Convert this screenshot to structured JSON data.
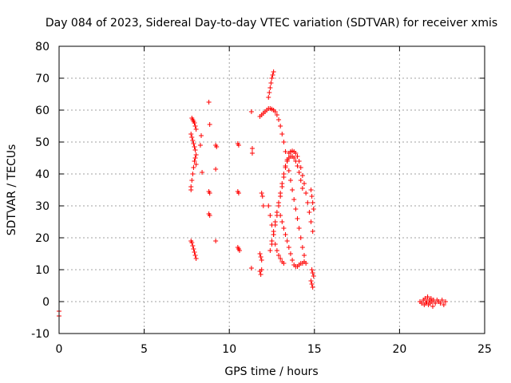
{
  "chart_data": {
    "type": "scatter",
    "title": "Day 084 of 2023, Sidereal Day-to-day VTEC variation (SDTVAR) for receiver xmis",
    "xlabel": "GPS time / hours",
    "ylabel": "SDTVAR / TECUs",
    "xlim": [
      0,
      25
    ],
    "ylim": [
      -10,
      80
    ],
    "xticks": [
      0,
      5,
      10,
      15,
      20,
      25
    ],
    "yticks": [
      -10,
      0,
      10,
      20,
      30,
      40,
      50,
      60,
      70,
      80
    ],
    "grid": true,
    "marker": "+",
    "color": "#ff0000",
    "series": [
      {
        "points": [
          [
            0.0,
            -3.0
          ],
          [
            0.0,
            -4.5
          ],
          [
            7.8,
            57.5
          ],
          [
            7.85,
            57.0
          ],
          [
            7.9,
            56.5
          ],
          [
            7.95,
            56.0
          ],
          [
            8.0,
            55.0
          ],
          [
            8.05,
            54.0
          ],
          [
            7.75,
            52.5
          ],
          [
            7.8,
            51.5
          ],
          [
            7.85,
            50.5
          ],
          [
            7.9,
            49.5
          ],
          [
            7.95,
            48.5
          ],
          [
            8.0,
            47.5
          ],
          [
            8.05,
            46.0
          ],
          [
            7.95,
            44.0
          ],
          [
            7.9,
            42.0
          ],
          [
            7.85,
            40.0
          ],
          [
            7.8,
            38.0
          ],
          [
            7.75,
            36.0
          ],
          [
            7.75,
            35.0
          ],
          [
            8.0,
            45.0
          ],
          [
            8.05,
            43.0
          ],
          [
            7.75,
            19.0
          ],
          [
            7.8,
            18.5
          ],
          [
            7.85,
            17.5
          ],
          [
            7.9,
            16.5
          ],
          [
            7.95,
            15.5
          ],
          [
            8.0,
            14.5
          ],
          [
            8.05,
            13.5
          ],
          [
            8.35,
            52.0
          ],
          [
            8.3,
            49.0
          ],
          [
            8.4,
            40.5
          ],
          [
            8.8,
            62.5
          ],
          [
            8.85,
            55.5
          ],
          [
            8.8,
            34.5
          ],
          [
            8.85,
            34.0
          ],
          [
            8.8,
            27.5
          ],
          [
            8.85,
            27.0
          ],
          [
            9.2,
            49.0
          ],
          [
            9.25,
            48.5
          ],
          [
            9.2,
            41.5
          ],
          [
            9.2,
            19.0
          ],
          [
            10.5,
            49.5
          ],
          [
            10.55,
            49.0
          ],
          [
            10.5,
            34.5
          ],
          [
            10.55,
            34.0
          ],
          [
            10.5,
            17.0
          ],
          [
            10.55,
            16.5
          ],
          [
            10.6,
            16.0
          ],
          [
            11.3,
            59.5
          ],
          [
            11.35,
            48.0
          ],
          [
            11.35,
            46.5
          ],
          [
            11.3,
            10.5
          ],
          [
            11.8,
            58.0
          ],
          [
            11.9,
            58.5
          ],
          [
            12.0,
            59.0
          ],
          [
            12.1,
            59.5
          ],
          [
            12.2,
            60.0
          ],
          [
            12.3,
            60.5
          ],
          [
            12.4,
            60.5
          ],
          [
            12.5,
            60.3
          ],
          [
            12.6,
            60.0
          ],
          [
            12.7,
            59.5
          ],
          [
            12.8,
            58.5
          ],
          [
            12.9,
            57.0
          ],
          [
            13.0,
            55.0
          ],
          [
            13.1,
            52.5
          ],
          [
            13.2,
            50.0
          ],
          [
            13.3,
            47.0
          ],
          [
            13.4,
            44.0
          ],
          [
            13.5,
            41.0
          ],
          [
            13.6,
            38.0
          ],
          [
            13.7,
            35.0
          ],
          [
            13.8,
            32.0
          ],
          [
            13.9,
            29.0
          ],
          [
            14.0,
            26.0
          ],
          [
            14.1,
            23.0
          ],
          [
            14.2,
            20.0
          ],
          [
            14.3,
            17.0
          ],
          [
            14.4,
            14.5
          ],
          [
            14.5,
            12.0
          ],
          [
            12.3,
            64.0
          ],
          [
            12.35,
            65.5
          ],
          [
            12.4,
            67.0
          ],
          [
            12.45,
            68.5
          ],
          [
            12.5,
            70.0
          ],
          [
            12.55,
            71.0
          ],
          [
            12.6,
            72.0
          ],
          [
            11.9,
            34.0
          ],
          [
            11.95,
            33.0
          ],
          [
            12.0,
            30.0
          ],
          [
            11.8,
            15.0
          ],
          [
            11.85,
            14.0
          ],
          [
            11.9,
            13.0
          ],
          [
            11.8,
            9.5
          ],
          [
            11.85,
            8.5
          ],
          [
            11.9,
            10.0
          ],
          [
            12.3,
            30.0
          ],
          [
            12.4,
            27.0
          ],
          [
            12.5,
            24.0
          ],
          [
            12.6,
            21.0
          ],
          [
            12.7,
            18.0
          ],
          [
            12.8,
            16.0
          ],
          [
            12.9,
            14.5
          ],
          [
            13.0,
            13.5
          ],
          [
            13.1,
            12.5
          ],
          [
            13.2,
            12.0
          ],
          [
            12.5,
            18.0
          ],
          [
            12.6,
            21.0
          ],
          [
            12.7,
            24.0
          ],
          [
            12.8,
            27.0
          ],
          [
            12.9,
            30.0
          ],
          [
            13.0,
            33.0
          ],
          [
            13.1,
            36.0
          ],
          [
            13.2,
            39.0
          ],
          [
            13.3,
            42.0
          ],
          [
            13.4,
            44.5
          ],
          [
            13.5,
            46.5
          ],
          [
            13.6,
            47.0
          ],
          [
            13.7,
            47.2
          ],
          [
            13.8,
            47.0
          ],
          [
            13.9,
            46.5
          ],
          [
            14.0,
            45.5
          ],
          [
            14.1,
            44.0
          ],
          [
            14.2,
            42.0
          ],
          [
            14.3,
            39.5
          ],
          [
            14.4,
            37.0
          ],
          [
            14.5,
            34.0
          ],
          [
            14.6,
            31.0
          ],
          [
            14.7,
            28.0
          ],
          [
            14.8,
            25.0
          ],
          [
            14.9,
            22.0
          ],
          [
            12.4,
            16.0
          ],
          [
            12.5,
            19.0
          ],
          [
            12.6,
            22.0
          ],
          [
            12.7,
            25.0
          ],
          [
            12.8,
            28.0
          ],
          [
            12.9,
            31.0
          ],
          [
            13.0,
            34.0
          ],
          [
            13.1,
            37.0
          ],
          [
            13.2,
            40.0
          ],
          [
            13.3,
            42.5
          ],
          [
            13.4,
            44.0
          ],
          [
            13.5,
            45.0
          ],
          [
            13.6,
            45.5
          ],
          [
            13.7,
            45.5
          ],
          [
            13.8,
            45.0
          ],
          [
            13.9,
            44.0
          ],
          [
            14.0,
            42.5
          ],
          [
            14.1,
            40.5
          ],
          [
            14.2,
            38.0
          ],
          [
            14.3,
            35.5
          ],
          [
            13.0,
            27.0
          ],
          [
            13.1,
            25.0
          ],
          [
            13.2,
            23.0
          ],
          [
            13.3,
            21.0
          ],
          [
            13.4,
            19.0
          ],
          [
            13.5,
            17.0
          ],
          [
            13.6,
            15.0
          ],
          [
            13.7,
            13.0
          ],
          [
            13.8,
            11.5
          ],
          [
            13.9,
            11.0
          ],
          [
            14.0,
            11.0
          ],
          [
            14.1,
            11.5
          ],
          [
            14.2,
            12.0
          ],
          [
            14.3,
            12.0
          ],
          [
            14.4,
            12.5
          ],
          [
            14.8,
            35.0
          ],
          [
            14.85,
            33.0
          ],
          [
            14.9,
            31.0
          ],
          [
            14.95,
            29.0
          ],
          [
            14.85,
            10.0
          ],
          [
            14.9,
            9.0
          ],
          [
            14.95,
            8.0
          ],
          [
            14.8,
            6.5
          ],
          [
            14.85,
            5.5
          ],
          [
            14.9,
            4.5
          ],
          [
            21.2,
            0.0
          ],
          [
            21.3,
            -0.5
          ],
          [
            21.4,
            0.5
          ],
          [
            21.45,
            -1.0
          ],
          [
            21.5,
            1.0
          ],
          [
            21.55,
            -0.5
          ],
          [
            21.6,
            0.0
          ],
          [
            21.65,
            1.5
          ],
          [
            21.7,
            -1.0
          ],
          [
            21.75,
            0.5
          ],
          [
            21.8,
            -0.5
          ],
          [
            21.85,
            1.0
          ],
          [
            21.9,
            0.0
          ],
          [
            21.95,
            -1.5
          ],
          [
            22.0,
            0.5
          ],
          [
            22.1,
            -0.5
          ],
          [
            22.2,
            0.5
          ],
          [
            22.3,
            0.0
          ],
          [
            22.4,
            -0.5
          ],
          [
            22.5,
            0.5
          ],
          [
            22.6,
            -1.0
          ],
          [
            22.7,
            0.0
          ]
        ]
      }
    ]
  }
}
